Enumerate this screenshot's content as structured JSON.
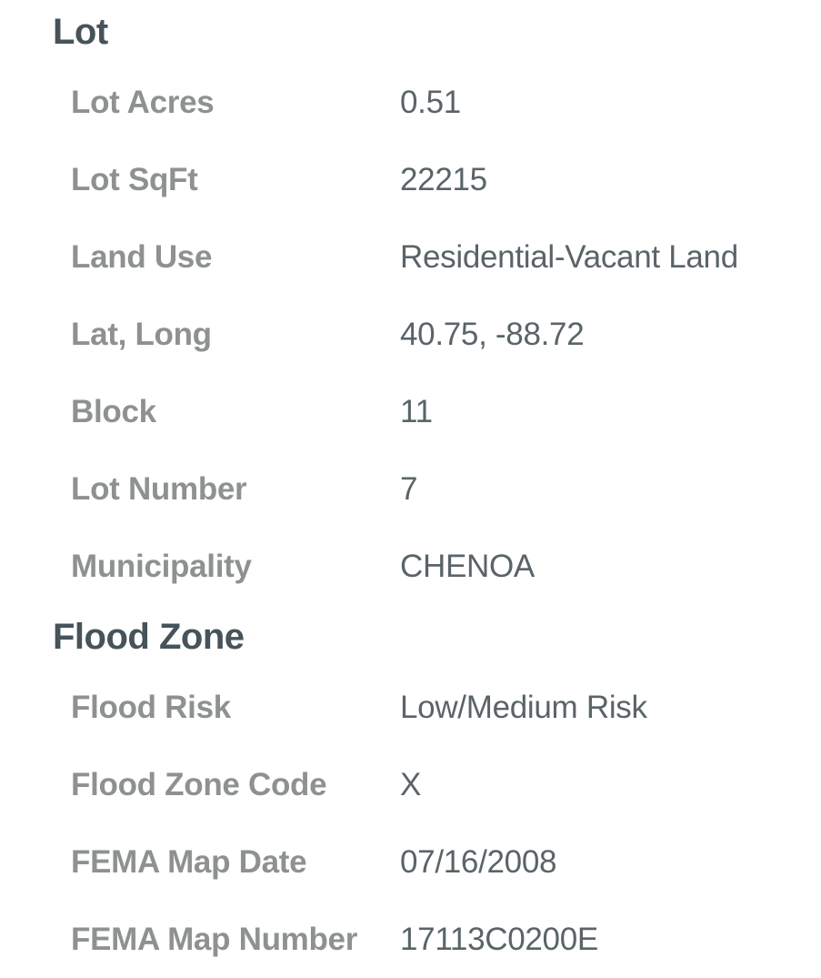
{
  "colors": {
    "background": "#ffffff",
    "heading": "#46535a",
    "label": "#8e9192",
    "value": "#5a6468"
  },
  "sections": [
    {
      "title": "Lot",
      "rows": [
        {
          "label": "Lot Acres",
          "value": "0.51"
        },
        {
          "label": "Lot SqFt",
          "value": "22215"
        },
        {
          "label": "Land Use",
          "value": "Residential-Vacant Land"
        },
        {
          "label": "Lat, Long",
          "value": "40.75, -88.72"
        },
        {
          "label": "Block",
          "value": "11"
        },
        {
          "label": "Lot Number",
          "value": "7"
        },
        {
          "label": "Municipality",
          "value": "CHENOA"
        }
      ]
    },
    {
      "title": "Flood Zone",
      "rows": [
        {
          "label": "Flood Risk",
          "value": "Low/Medium Risk"
        },
        {
          "label": "Flood Zone Code",
          "value": "X"
        },
        {
          "label": "FEMA Map Date",
          "value": "07/16/2008"
        },
        {
          "label": "FEMA Map Number",
          "value": "17113C0200E"
        }
      ]
    }
  ]
}
